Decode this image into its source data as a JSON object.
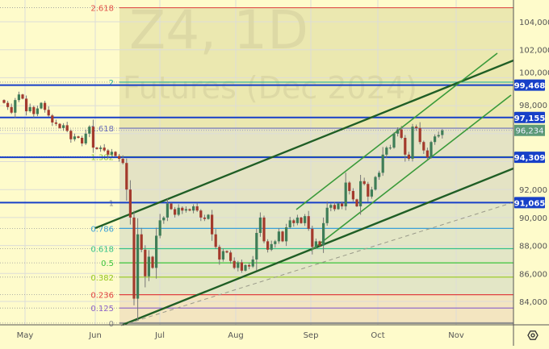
{
  "watermark": {
    "symbol_line": "Z4, 1D",
    "description": "Futures (Dec 2024)"
  },
  "colors": {
    "background": "#fefbcb",
    "up": "#3f7d57",
    "down": "#a33a2c",
    "hline": "#1740c8",
    "trend_dark": "#1f5e25",
    "trend_light": "#3a9a3a",
    "last_price": "#5c9a78"
  },
  "chart_data": {
    "type": "candlestick",
    "x_ticks": [
      "May",
      "Jun",
      "Jul",
      "Aug",
      "Sep",
      "Oct",
      "Nov"
    ],
    "y_ticks": [
      "104,000",
      "102,000",
      "100,000",
      "98,000",
      "92,000",
      "90,000",
      "88,000",
      "86,000",
      "84,000"
    ],
    "y_tick_values": [
      104000,
      102000,
      100000,
      98000,
      92000,
      90000,
      88000,
      86000,
      84000
    ],
    "ylim": [
      82450,
      105400
    ],
    "grid": true,
    "closes": [
      98200,
      97900,
      97500,
      98400,
      98800,
      98500,
      97600,
      97900,
      97400,
      97800,
      98200,
      97700,
      97300,
      96800,
      96700,
      96400,
      96600,
      96200,
      95600,
      95800,
      95700,
      95300,
      96000,
      96500,
      95000,
      94900,
      95000,
      94800,
      94500,
      94700,
      94400,
      94200,
      93900,
      92000,
      90000,
      84200,
      88800,
      87700,
      85800,
      87200,
      86400,
      88700,
      89800,
      90000,
      91000,
      90600,
      90200,
      90700,
      90500,
      90600,
      90500,
      90800,
      90500,
      90000,
      89900,
      90200,
      88800,
      87900,
      87000,
      87600,
      87500,
      86900,
      86400,
      86800,
      86200,
      86600,
      86500,
      87000,
      88900,
      90000,
      88300,
      87700,
      88100,
      88300,
      89000,
      88300,
      89300,
      89800,
      89600,
      90000,
      89600,
      90100,
      89200,
      87900,
      88300,
      88000,
      89600,
      90700,
      90900,
      90600,
      91000,
      90800,
      92500,
      91900,
      91300,
      90800,
      92600,
      92400,
      91500,
      92000,
      92900,
      93200,
      94500,
      95000,
      95000,
      96000,
      96300,
      95700,
      94500,
      94200,
      96500,
      96400,
      95400,
      94800,
      94300,
      95400,
      95800,
      95900,
      96234
    ],
    "horizontal_levels": [
      {
        "value": 99468,
        "label": "99,468"
      },
      {
        "value": 97155,
        "label": "97,155"
      },
      {
        "value": 94309,
        "label": "94,309"
      },
      {
        "value": 91065,
        "label": "91,065"
      }
    ],
    "last_price": {
      "value": 96234,
      "label": "96,234"
    },
    "fibonacci": {
      "base_value": 82450,
      "unit_value": 8615,
      "levels": [
        {
          "level": 2.618,
          "label": "2.618",
          "color": "#e0504a"
        },
        {
          "level": 2,
          "label": "2",
          "color": "#27b59a"
        },
        {
          "level": 1.618,
          "label": "1.618",
          "color": "#6a6fb8"
        },
        {
          "level": 1.382,
          "label": "1.382",
          "color": "#8dc63f"
        },
        {
          "level": 1,
          "label": "1",
          "color": "#8a8a8a"
        },
        {
          "level": 0.786,
          "label": "0.786",
          "color": "#3aa0d8"
        },
        {
          "level": 0.618,
          "label": "0.618",
          "color": "#36c28a"
        },
        {
          "level": 0.5,
          "label": "0.5",
          "color": "#3cc43c"
        },
        {
          "level": 0.382,
          "label": "0.382",
          "color": "#96c81e"
        },
        {
          "level": 0.236,
          "label": "0.236",
          "color": "#e04040"
        },
        {
          "level": 0.125,
          "label": "0.125",
          "color": "#8a60c8"
        },
        {
          "level": 0,
          "label": "0",
          "color": "#8a8a8a"
        }
      ]
    }
  },
  "settings_icon": "gear-hex-icon"
}
